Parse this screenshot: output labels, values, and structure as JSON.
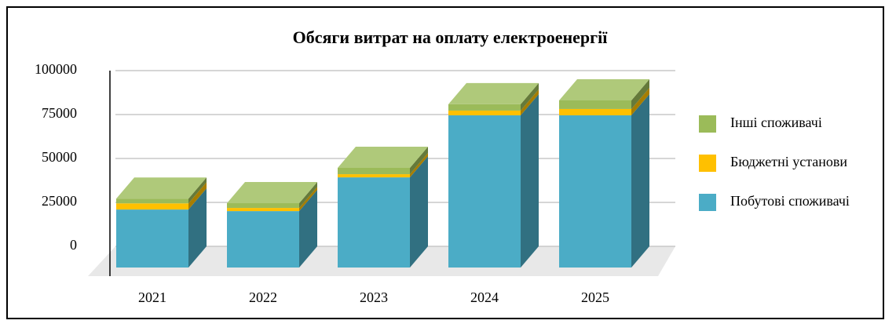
{
  "chart_data": {
    "type": "bar",
    "stacked": true,
    "three_d": true,
    "title": "Обсяги витрат на оплату електроенергії",
    "categories": [
      "2021",
      "2022",
      "2023",
      "2024",
      "2025"
    ],
    "series": [
      {
        "name": "Побутові споживачі",
        "color": "#4bacc6",
        "values": [
          33000,
          32100,
          51300,
          86600,
          86600
        ]
      },
      {
        "name": "Бюджетні установи",
        "color": "#ffc000",
        "values": [
          3500,
          1800,
          1800,
          2700,
          3600
        ]
      },
      {
        "name": "Інші споживачі",
        "color": "#9bbb59",
        "values": [
          2700,
          2700,
          3600,
          3600,
          4900
        ]
      }
    ],
    "ylim": [
      0,
      100000
    ],
    "yticks": [
      0,
      25000,
      50000,
      75000,
      100000
    ],
    "grid": true,
    "legend": "right"
  }
}
